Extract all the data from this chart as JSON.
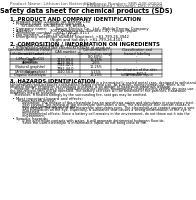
{
  "bg_color": "#ffffff",
  "header_left": "Product Name: Lithium Ion Battery Cell",
  "header_right_line1": "Substance Number: SBR-048-00010",
  "header_right_line2": "Established / Revision: Dec.7,2009",
  "title": "Safety data sheet for chemical products (SDS)",
  "section1_title": "1. PRODUCT AND COMPANY IDENTIFICATION",
  "section1_lines": [
    "  • Product name: Lithium Ion Battery Cell",
    "  • Product code: Cylindrical-type cell",
    "         SYI-B600U, SYI-B650U, SYI-B660A",
    "  • Company name:       Sanyo Electric Co., Ltd., Mobile Energy Company",
    "  • Address:              2001 Kamitoricho, Sumoto City, Hyogo, Japan",
    "  • Telephone number:   +81-799-26-4111",
    "  • Fax number:   +81-799-26-4129",
    "  • Emergency telephone number (daytime): +81-799-26-3942",
    "                                (Night and holiday): +81-799-26-4101"
  ],
  "section2_title": "2. COMPOSITION / INFORMATION ON INGREDIENTS",
  "section2_intro": "  • Substance or preparation: Preparation",
  "section2_sub": "  • Information about the chemical nature of product:",
  "table_col_headers": [
    "Common chemical name /\nGeneral names",
    "CAS number",
    "Concentration /\nConcentration range",
    "Classification and\nhazard labeling"
  ],
  "table_rows": [
    [
      "Lithium nickel cobaltate\n(LiMnxCoyNizO2)",
      "-",
      "(30-60%)",
      "-"
    ],
    [
      "Iron",
      "7439-89-6",
      "15-25%",
      "-"
    ],
    [
      "Aluminum",
      "7429-90-5",
      "2-6%",
      "-"
    ],
    [
      "Graphite\n(Natural graphite)\n(Artificial graphite)",
      "7782-42-5\n7782-44-0",
      "10-25%",
      "-"
    ],
    [
      "Copper",
      "7440-50-8",
      "5-15%",
      "Sensitization of the skin\ngroup R43,2"
    ],
    [
      "Organic electrolyte",
      "-",
      "10-20%",
      "Inflammable liquid"
    ]
  ],
  "section3_title": "3. HAZARDS IDENTIFICATION",
  "section3_para1": [
    "For the battery cell, chemical materials are stored in a hermetically sealed metal case, designed to withstand",
    "temperatures and pressures encountered during normal use. As a result, during normal use, there is no",
    "physical danger of ignition or explosion and there is no danger of hazardous materials leakage.",
    "    However, if exposed to a fire, added mechanical shocks, decomposed, under electric vehicle dry miss-use,",
    "the gas release vent will be operated. The battery cell case will be breached of fire-particles, hazardous",
    "materials may be released.",
    "    Moreover, if heated strongly by the surrounding fire, soot gas may be emitted."
  ],
  "section3_bullet1_title": "  • Most important hazard and effects:",
  "section3_bullet1_lines": [
    "       Human health effects:",
    "           Inhalation: The release of the electrolyte has an anesthesia action and stimulates in respiratory tract.",
    "           Skin contact: The release of the electrolyte stimulates a skin. The electrolyte skin contact causes a",
    "           sore and stimulation on the skin.",
    "           Eye contact: The release of the electrolyte stimulates eyes. The electrolyte eye contact causes a sore",
    "           and stimulation on the eye. Especially, a substance that causes a strong inflammation of the eye is",
    "           contained.",
    "           Environmental effects: Since a battery cell remains in the environment, do not throw out it into the",
    "           environment."
  ],
  "section3_bullet2_title": "  • Specific hazards:",
  "section3_bullet2_lines": [
    "           If the electrolyte contacts with water, it will generate detrimental hydrogen fluoride.",
    "           Since the used electrolyte is inflammable liquid, do not bring close to fire."
  ]
}
